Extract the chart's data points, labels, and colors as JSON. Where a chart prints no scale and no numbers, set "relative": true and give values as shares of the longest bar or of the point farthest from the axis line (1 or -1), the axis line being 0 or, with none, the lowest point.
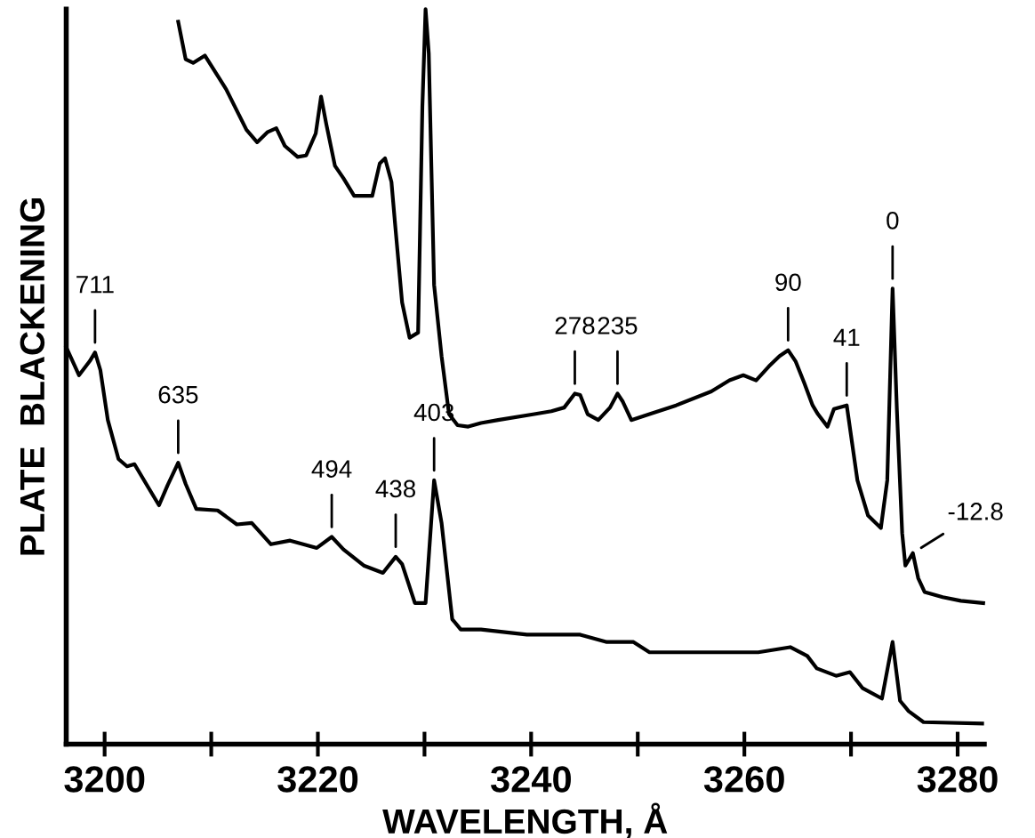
{
  "chart_data": {
    "type": "line",
    "relative": true,
    "xlabel": "WAVELENGTH, Å",
    "ylabel": "PLATE  BLACKENING",
    "xlim": [
      3196.4,
      3282.5
    ],
    "xticks": [
      3200,
      {
        "value": 3210,
        "label": null
      },
      3220,
      {
        "value": 3230,
        "label": null
      },
      3240,
      {
        "value": 3250,
        "label": null
      },
      3260,
      {
        "value": 3270,
        "label": null
      },
      3280
    ],
    "tick_labels": "x",
    "grid": false,
    "legend": false,
    "marker": "none",
    "line_style": "solid",
    "series": [
      {
        "color": "#000000",
        "x": [
          3206.9,
          3207.6,
          3208.3,
          3209.4,
          3211.4,
          3213.3,
          3214.3,
          3215.3,
          3216.1,
          3216.9,
          3218.1,
          3218.9,
          3219.8,
          3220.3,
          3220.8,
          3221.6,
          3222.4,
          3223.4,
          3225.1,
          3225.8,
          3226.3,
          3226.9,
          3227.3,
          3227.9,
          3228.6,
          3229.4,
          3229.8,
          3230.1,
          3230.4,
          3230.9,
          3231.6,
          3232.3,
          3233.1,
          3234.1,
          3235.3,
          3236.9,
          3240.3,
          3241.9,
          3243.1,
          3244.1,
          3244.6,
          3245.3,
          3246.3,
          3247.4,
          3248.1,
          3248.6,
          3249.4,
          3251.1,
          3253.6,
          3256.9,
          3258.6,
          3259.9,
          3261.1,
          3262.3,
          3263.3,
          3264.1,
          3264.8,
          3265.6,
          3266.4,
          3266.9,
          3267.8,
          3268.4,
          3269.6,
          3270.6,
          3271.6,
          3272.8,
          3273.4,
          3273.9,
          3274.3,
          3274.8,
          3275.1,
          3275.8,
          3276.3,
          3276.9,
          3278.6,
          3280.3,
          3282.4
        ],
        "values": [
          0.983,
          0.932,
          0.927,
          0.937,
          0.891,
          0.836,
          0.819,
          0.833,
          0.838,
          0.814,
          0.799,
          0.801,
          0.831,
          0.881,
          0.843,
          0.787,
          0.77,
          0.746,
          0.746,
          0.79,
          0.797,
          0.765,
          0.698,
          0.601,
          0.553,
          0.56,
          0.867,
          1.0,
          0.94,
          0.625,
          0.528,
          0.449,
          0.434,
          0.432,
          0.437,
          0.441,
          0.449,
          0.453,
          0.458,
          0.477,
          0.475,
          0.449,
          0.441,
          0.458,
          0.477,
          0.466,
          0.441,
          0.449,
          0.461,
          0.48,
          0.495,
          0.502,
          0.495,
          0.514,
          0.528,
          0.536,
          0.521,
          0.492,
          0.461,
          0.449,
          0.432,
          0.456,
          0.461,
          0.359,
          0.311,
          0.294,
          0.359,
          0.62,
          0.456,
          0.287,
          0.243,
          0.26,
          0.226,
          0.207,
          0.2,
          0.195,
          0.192
        ]
      },
      {
        "color": "#000000",
        "x": [
          3196.4,
          3197.6,
          3198.6,
          3199.1,
          3199.6,
          3200.3,
          3201.3,
          3202.1,
          3202.8,
          3203.9,
          3205.1,
          3205.9,
          3206.9,
          3207.6,
          3208.6,
          3210.6,
          3212.4,
          3213.8,
          3215.6,
          3217.4,
          3219.9,
          3221.3,
          3222.4,
          3224.3,
          3226.1,
          3227.3,
          3227.9,
          3229.1,
          3230.1,
          3230.9,
          3231.6,
          3232.6,
          3233.4,
          3235.3,
          3239.6,
          3244.6,
          3247.1,
          3249.6,
          3251.1,
          3255.1,
          3261.3,
          3264.3,
          3265.9,
          3266.8,
          3268.6,
          3269.9,
          3271.1,
          3272.9,
          3273.9,
          3274.6,
          3275.4,
          3276.8,
          3282.3
        ],
        "values": [
          0.54,
          0.502,
          0.521,
          0.533,
          0.509,
          0.441,
          0.388,
          0.378,
          0.381,
          0.354,
          0.325,
          0.352,
          0.383,
          0.354,
          0.32,
          0.318,
          0.299,
          0.301,
          0.272,
          0.277,
          0.267,
          0.282,
          0.265,
          0.243,
          0.233,
          0.255,
          0.245,
          0.192,
          0.192,
          0.359,
          0.301,
          0.17,
          0.156,
          0.156,
          0.149,
          0.149,
          0.139,
          0.139,
          0.125,
          0.125,
          0.125,
          0.132,
          0.12,
          0.103,
          0.093,
          0.098,
          0.076,
          0.062,
          0.139,
          0.059,
          0.045,
          0.03,
          0.028
        ]
      }
    ],
    "annotations": [
      {
        "text": "711",
        "x": 3199.1,
        "y": 0.533
      },
      {
        "text": "635",
        "x": 3206.9,
        "y": 0.383
      },
      {
        "text": "494",
        "x": 3221.3,
        "y": 0.282
      },
      {
        "text": "438",
        "x": 3227.3,
        "y": 0.255
      },
      {
        "text": "403",
        "x": 3230.9,
        "y": 0.359
      },
      {
        "text": "278",
        "x": 3244.1,
        "y": 0.477
      },
      {
        "text": "235",
        "x": 3248.1,
        "y": 0.477
      },
      {
        "text": "90",
        "x": 3264.1,
        "y": 0.536
      },
      {
        "text": "41",
        "x": 3269.6,
        "y": 0.461
      },
      {
        "text": "0",
        "x": 3273.9,
        "y": 0.62
      },
      {
        "text": "-12.8",
        "x": 3275.8,
        "y": 0.26
      }
    ]
  }
}
